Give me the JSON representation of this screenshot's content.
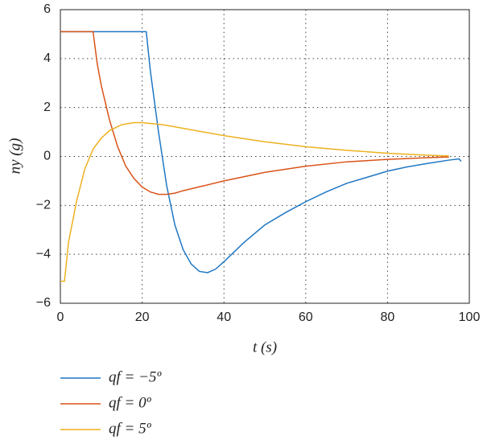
{
  "chart_data": {
    "type": "line",
    "x_label": "t (s)",
    "y_label": "ny (g)",
    "xlim": [
      0,
      100
    ],
    "ylim": [
      -6,
      6
    ],
    "xticks": [
      0,
      20,
      40,
      60,
      80,
      100
    ],
    "yticks": [
      {
        "value": -6,
        "label": "−6"
      },
      {
        "value": -4,
        "label": "−4"
      },
      {
        "value": -2,
        "label": "−2"
      },
      0,
      2,
      4,
      6
    ],
    "grid": true,
    "legend": "below",
    "series": [
      {
        "name": "qf = −5º",
        "color": "#1f77c4",
        "x": [
          0,
          21,
          22,
          24,
          26,
          28,
          30,
          32,
          34,
          36,
          38,
          40,
          45,
          50,
          55,
          60,
          65,
          70,
          75,
          80,
          85,
          90,
          95,
          97.5,
          98
        ],
        "values": [
          5.1,
          5.1,
          3.5,
          1,
          -1.2,
          -2.8,
          -3.8,
          -4.4,
          -4.7,
          -4.75,
          -4.6,
          -4.3,
          -3.5,
          -2.8,
          -2.3,
          -1.85,
          -1.45,
          -1.1,
          -0.85,
          -0.6,
          -0.42,
          -0.28,
          -0.15,
          -0.1,
          -0.2
        ]
      },
      {
        "name": "qf = 0º",
        "color": "#d95319",
        "x": [
          0,
          8,
          9,
          10,
          12,
          14,
          16,
          18,
          20,
          22,
          24,
          26,
          28,
          30,
          35,
          40,
          50,
          60,
          70,
          80,
          90,
          95
        ],
        "values": [
          5.1,
          5.1,
          3.8,
          2.9,
          1.5,
          0.4,
          -0.4,
          -0.9,
          -1.25,
          -1.45,
          -1.55,
          -1.55,
          -1.5,
          -1.4,
          -1.2,
          -1.0,
          -0.65,
          -0.4,
          -0.22,
          -0.12,
          -0.05,
          -0.02
        ]
      },
      {
        "name": "qf = 5º",
        "color": "#edb120",
        "x": [
          0,
          1,
          2,
          4,
          6,
          8,
          10,
          12,
          15,
          18,
          20,
          25,
          30,
          40,
          50,
          60,
          70,
          80,
          90,
          95
        ],
        "values": [
          -5.1,
          -5.1,
          -3.5,
          -1.8,
          -0.5,
          0.3,
          0.75,
          1.05,
          1.3,
          1.38,
          1.38,
          1.3,
          1.15,
          0.85,
          0.6,
          0.4,
          0.25,
          0.13,
          0.05,
          0.02
        ]
      }
    ]
  }
}
